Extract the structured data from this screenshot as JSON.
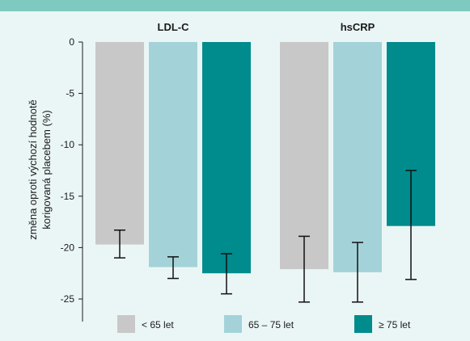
{
  "colors": {
    "band": "#7ec9c0",
    "background": "#eaf6f5",
    "series": [
      "#c8c8c8",
      "#a3d3d9",
      "#008b8d"
    ],
    "axis": "#1a1a1a"
  },
  "chart_data": {
    "type": "bar",
    "categories": [
      "LDL-C",
      "hsCRP"
    ],
    "series": [
      {
        "name": "< 65 let",
        "values": [
          -19.7,
          -22.1
        ],
        "error_low": [
          -21.0,
          -25.3
        ],
        "error_high": [
          -18.3,
          -18.9
        ]
      },
      {
        "name": "65 – 75 let",
        "values": [
          -21.9,
          -22.4
        ],
        "error_low": [
          -23.0,
          -25.3
        ],
        "error_high": [
          -20.9,
          -19.5
        ]
      },
      {
        "name": "≥ 75 let",
        "values": [
          -22.5,
          -17.9
        ],
        "error_low": [
          -24.5,
          -23.1
        ],
        "error_high": [
          -20.6,
          -12.5
        ]
      }
    ],
    "ylabel_lines": [
      "změna oproti výchozí hodnotě",
      "korigovaná placebem (%)"
    ],
    "ylim": [
      -27,
      0
    ],
    "yticks": [
      0,
      -5,
      -10,
      -15,
      -20,
      -25
    ],
    "legend_position": "bottom"
  }
}
